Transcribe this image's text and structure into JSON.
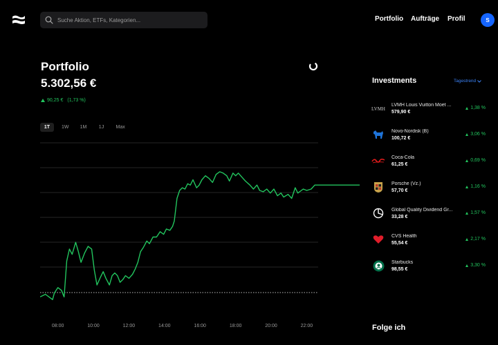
{
  "header": {
    "logo_icon": "waves-logo-icon",
    "search": {
      "placeholder": "Suche Aktion, ETFs, Kategorien..."
    },
    "nav": [
      {
        "label": "Portfolio"
      },
      {
        "label": "Aufträge"
      },
      {
        "label": "Profil"
      }
    ],
    "avatar_initial": "S",
    "avatar_color": "#1565ff"
  },
  "portfolio": {
    "title": "Portfolio",
    "value": "5.302,56 €",
    "change_abs": "90,25 €",
    "change_pct": "(1,73 %)",
    "positive_color": "#22c55e",
    "ranges": [
      {
        "label": "1T",
        "active": true
      },
      {
        "label": "1W",
        "active": false
      },
      {
        "label": "1M",
        "active": false
      },
      {
        "label": "1J",
        "active": false
      },
      {
        "label": "Max",
        "active": false
      }
    ]
  },
  "chart_data": {
    "type": "line",
    "x_ticks": [
      "08:00",
      "10:00",
      "12:00",
      "14:00",
      "16:00",
      "18:00",
      "20:00",
      "22:00"
    ],
    "x_range_hours": [
      7.5,
      23.25
    ],
    "line_color": "#22c55e",
    "baseline_style": "dotted",
    "grid": true,
    "series": [
      {
        "points": [
          [
            7.5,
            0.05
          ],
          [
            7.8,
            0.07
          ],
          [
            8.0,
            0.05
          ],
          [
            8.2,
            0.03
          ],
          [
            8.3,
            0.08
          ],
          [
            8.5,
            0.12
          ],
          [
            8.7,
            0.1
          ],
          [
            8.85,
            0.05
          ],
          [
            9.0,
            0.32
          ],
          [
            9.15,
            0.41
          ],
          [
            9.3,
            0.37
          ],
          [
            9.5,
            0.46
          ],
          [
            9.65,
            0.39
          ],
          [
            9.8,
            0.31
          ],
          [
            10.0,
            0.38
          ],
          [
            10.2,
            0.43
          ],
          [
            10.4,
            0.41
          ],
          [
            10.55,
            0.25
          ],
          [
            10.7,
            0.14
          ],
          [
            10.9,
            0.2
          ],
          [
            11.05,
            0.24
          ],
          [
            11.2,
            0.19
          ],
          [
            11.4,
            0.14
          ],
          [
            11.55,
            0.21
          ],
          [
            11.7,
            0.23
          ],
          [
            11.85,
            0.21
          ],
          [
            12.0,
            0.16
          ],
          [
            12.15,
            0.18
          ],
          [
            12.3,
            0.21
          ],
          [
            12.5,
            0.19
          ],
          [
            12.7,
            0.22
          ],
          [
            12.85,
            0.26
          ],
          [
            13.0,
            0.31
          ],
          [
            13.15,
            0.39
          ],
          [
            13.3,
            0.42
          ],
          [
            13.5,
            0.47
          ],
          [
            13.65,
            0.45
          ],
          [
            13.85,
            0.5
          ],
          [
            14.05,
            0.5
          ],
          [
            14.25,
            0.54
          ],
          [
            14.45,
            0.52
          ],
          [
            14.6,
            0.56
          ],
          [
            14.8,
            0.55
          ],
          [
            14.95,
            0.58
          ],
          [
            15.05,
            0.62
          ],
          [
            15.2,
            0.79
          ],
          [
            15.35,
            0.85
          ],
          [
            15.5,
            0.87
          ],
          [
            15.65,
            0.86
          ],
          [
            15.8,
            0.9
          ],
          [
            15.95,
            0.89
          ],
          [
            16.1,
            0.93
          ],
          [
            16.3,
            0.87
          ],
          [
            16.45,
            0.89
          ],
          [
            16.6,
            0.93
          ],
          [
            16.8,
            0.96
          ],
          [
            17.0,
            0.94
          ],
          [
            17.2,
            0.91
          ],
          [
            17.4,
            0.97
          ],
          [
            17.6,
            0.99
          ],
          [
            17.8,
            0.98
          ],
          [
            18.0,
            0.96
          ],
          [
            18.15,
            0.92
          ],
          [
            18.35,
            0.98
          ],
          [
            18.5,
            0.96
          ],
          [
            18.65,
            0.98
          ],
          [
            18.85,
            0.95
          ],
          [
            19.05,
            0.92
          ],
          [
            19.3,
            0.89
          ],
          [
            19.5,
            0.86
          ],
          [
            19.7,
            0.89
          ],
          [
            19.85,
            0.85
          ],
          [
            20.05,
            0.84
          ],
          [
            20.25,
            0.86
          ],
          [
            20.45,
            0.83
          ],
          [
            20.65,
            0.86
          ],
          [
            20.85,
            0.81
          ],
          [
            21.05,
            0.83
          ],
          [
            21.2,
            0.8
          ],
          [
            21.45,
            0.82
          ],
          [
            21.65,
            0.79
          ],
          [
            21.85,
            0.87
          ],
          [
            22.0,
            0.83
          ],
          [
            22.3,
            0.86
          ],
          [
            22.5,
            0.85
          ],
          [
            22.75,
            0.86
          ],
          [
            22.95,
            0.89
          ],
          [
            23.25,
            0.89
          ]
        ]
      }
    ]
  },
  "investments": {
    "title": "Investments",
    "sort_label": "Tagestrend",
    "sort_color": "#3b82f6",
    "items": [
      {
        "name": "LVMH Louis Vuitton Moet ...",
        "price": "579,90 €",
        "change": "1,38 %",
        "icon": "lvmh-logo-icon"
      },
      {
        "name": "Novo-Nordisk (B)",
        "price": "100,72 €",
        "change": "3,06 %",
        "icon": "novo-nordisk-bull-icon"
      },
      {
        "name": "Coca-Cola",
        "price": "61,25 €",
        "change": "0,69 %",
        "icon": "coca-cola-logo-icon"
      },
      {
        "name": "Porsche (Vz.)",
        "price": "57,70 €",
        "change": "1,16 %",
        "icon": "porsche-crest-icon"
      },
      {
        "name": "Global Quality Dividend Gr...",
        "price": "33,28 €",
        "change": "1,57 %",
        "icon": "pie-chart-icon"
      },
      {
        "name": "CVS Health",
        "price": "55,54 €",
        "change": "2,17 %",
        "icon": "cvs-heart-icon"
      },
      {
        "name": "Starbucks",
        "price": "98,55 €",
        "change": "3,30 %",
        "icon": "starbucks-siren-icon"
      }
    ]
  },
  "follow": {
    "title": "Folge ich"
  }
}
